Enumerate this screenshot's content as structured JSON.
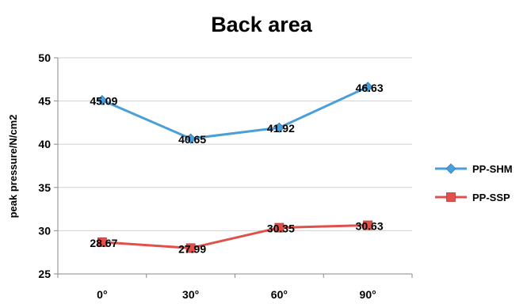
{
  "chart_data": {
    "type": "line",
    "title": "Back area",
    "xlabel": "",
    "ylabel": "peak pressure/N/cm2",
    "categories": [
      "0°",
      "30°",
      "60°",
      "90°"
    ],
    "ylim": [
      25,
      50
    ],
    "yticks": [
      "25",
      "30",
      "35",
      "40",
      "45",
      "50"
    ],
    "grid": true,
    "legend": "right",
    "series": [
      {
        "name": "PP-SHM",
        "values": [
          45.09,
          40.65,
          41.92,
          46.63
        ],
        "labels": [
          "45.09",
          "40.65",
          "41.92",
          "46.63"
        ],
        "color": "#4a9fd8",
        "marker": "diamond"
      },
      {
        "name": "PP-SSP",
        "values": [
          28.67,
          27.99,
          30.35,
          30.63
        ],
        "labels": [
          "28.67",
          "27.99",
          "30.35",
          "30.63"
        ],
        "color": "#e0514c",
        "marker": "square"
      }
    ]
  }
}
